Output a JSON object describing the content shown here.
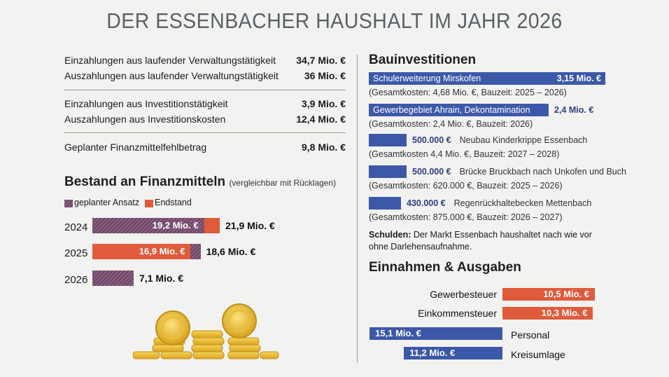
{
  "title": "DER ESSENBACHER HAUSHALT IM JAHR 2026",
  "finances": [
    {
      "label": "Einzahlungen aus laufender Verwaltungstätigkeit",
      "value": "34,7 Mio. €"
    },
    {
      "label": "Auszahlungen aus laufender Verwaltungstätigkeit",
      "value": "36 Mio. €"
    },
    {
      "label": "Einzahlungen aus Investitionstätigkeit",
      "value": "3,9 Mio. €"
    },
    {
      "label": "Auszahlungen aus Investitionskosten",
      "value": "12,4 Mio. €"
    },
    {
      "label": "Geplanter Finanzmittelfehlbetrag",
      "value": "9,8 Mio. €"
    }
  ],
  "bestand": {
    "heading": "Bestand an Finanzmitteln",
    "subheading": "(vergleichbar mit Rücklagen)",
    "legend": {
      "planned": "geplanter Ansatz",
      "final": "Endstand"
    }
  },
  "bau": {
    "heading": "Bauinvestitionen",
    "projects": [
      {
        "name": "Schulerweiterung Mirskofen",
        "amount": "3,15 Mio. €",
        "details": "(Gesamtkosten: 4,68 Mio. €, Bauzeit: 2025 – 2026)"
      },
      {
        "name": "Gewerbegebiet Ahrain, Dekontamination",
        "amount": "2,4 Mio. €",
        "details": "(Gesamtkosten: 2,4 Mio. €, Bauzeit: 2026)"
      },
      {
        "name": "Neubau Kinderkrippe Essenbach",
        "amount": "500.000 €",
        "details": "(Gesamtkosten 4,4 Mio. €, Bauzeit: 2027 – 2028)"
      },
      {
        "name": "Brücke Bruckbach nach Unkofen und Buch",
        "amount": "500.000 €",
        "details": "(Gesamtkosten: 620.000 €, Bauzeit: 2025 – 2026)"
      },
      {
        "name": "Regenrückhaltebecken Mettenbach",
        "amount": "430.000 €",
        "details": "(Gesamtkosten: 875.000 €, Bauzeit: 2026 – 2027)"
      }
    ],
    "schulden_label": "Schulden:",
    "schulden_text": "Der Markt Essenbach haushaltet nach wie vor ohne Darlehensaufnahme."
  },
  "ie": {
    "heading": "Einnahmen & Ausgaben"
  },
  "colors": {
    "planned": "#7a4a6a",
    "final": "#df5b3b",
    "blue": "#3c58a8"
  },
  "chart_data": [
    {
      "type": "bar",
      "title": "Bestand an Finanzmitteln",
      "subtitle": "(vergleichbar mit Rücklagen)",
      "categories": [
        "2024",
        "2025",
        "2026"
      ],
      "series": [
        {
          "name": "geplanter Ansatz",
          "values": [
            21.9,
            18.6,
            7.1
          ],
          "labels": [
            "21,9 Mio. €",
            "18,6 Mio. €",
            "7,1 Mio. €"
          ]
        },
        {
          "name": "Endstand",
          "values": [
            19.2,
            16.9,
            null
          ],
          "labels": [
            "19,2 Mio. €",
            "16,9 Mio. €",
            ""
          ]
        }
      ],
      "legend": "top-left"
    },
    {
      "type": "bar",
      "title": "Bauinvestitionen",
      "categories": [
        "Schulerweiterung Mirskofen",
        "Gewerbegebiet Ahrain, Dekontamination",
        "Neubau Kinderkrippe Essenbach",
        "Brücke Bruckbach nach Unkofen und Buch",
        "Regenrückhaltebecken Mettenbach"
      ],
      "values": [
        3.15,
        2.4,
        0.5,
        0.5,
        0.43
      ]
    },
    {
      "type": "bar",
      "title": "Einnahmen & Ausgaben",
      "categories": [
        "Gewerbesteuer",
        "Einkommensteuer",
        "Personal",
        "Kreisumlage"
      ],
      "values": [
        10.5,
        10.3,
        15.1,
        11.2
      ],
      "labels": [
        "10,5 Mio. €",
        "10,3 Mio. €",
        "15,1 Mio. €",
        "11,2 Mio. €"
      ],
      "kind": [
        "income",
        "income",
        "expense",
        "expense"
      ]
    }
  ]
}
